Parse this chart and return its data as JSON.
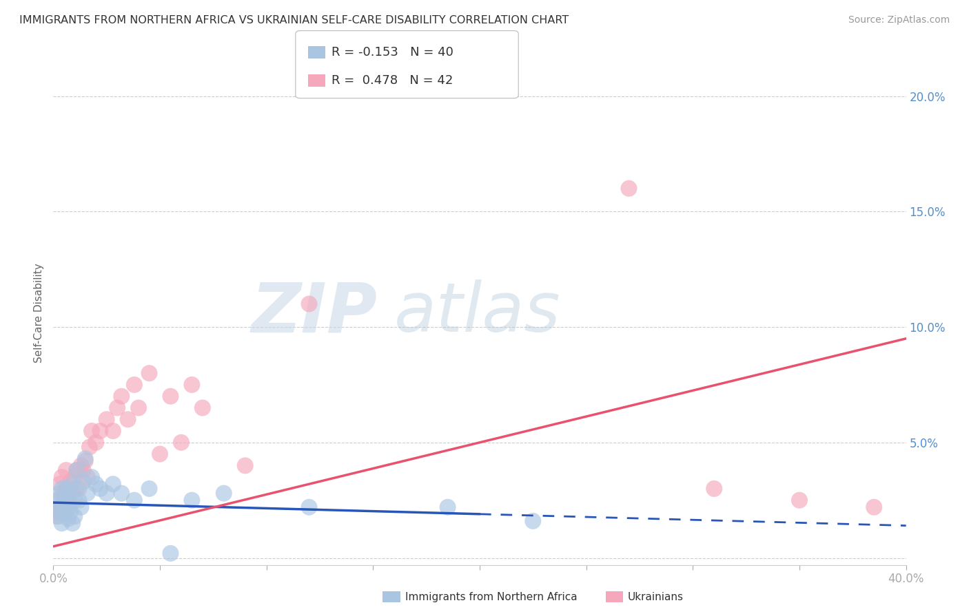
{
  "title": "IMMIGRANTS FROM NORTHERN AFRICA VS UKRAINIAN SELF-CARE DISABILITY CORRELATION CHART",
  "source": "Source: ZipAtlas.com",
  "ylabel": "Self-Care Disability",
  "xlim": [
    0.0,
    0.4
  ],
  "ylim": [
    -0.003,
    0.215
  ],
  "xticks": [
    0.0,
    0.05,
    0.1,
    0.15,
    0.2,
    0.25,
    0.3,
    0.35,
    0.4
  ],
  "xticklabels": [
    "0.0%",
    "",
    "",
    "",
    "",
    "",
    "",
    "",
    "40.0%"
  ],
  "yticks": [
    0.0,
    0.05,
    0.1,
    0.15,
    0.2
  ],
  "yticklabels": [
    "",
    "5.0%",
    "10.0%",
    "15.0%",
    "20.0%"
  ],
  "blue_R": -0.153,
  "blue_N": 40,
  "pink_R": 0.478,
  "pink_N": 42,
  "blue_color": "#aac5e2",
  "pink_color": "#f5a8bc",
  "blue_line_color": "#2855b8",
  "pink_line_color": "#e8526e",
  "watermark_zip": "ZIP",
  "watermark_atlas": "atlas",
  "legend_label_blue": "Immigrants from Northern Africa",
  "legend_label_pink": "Ukrainians",
  "blue_scatter_x": [
    0.001,
    0.002,
    0.002,
    0.003,
    0.003,
    0.004,
    0.004,
    0.005,
    0.005,
    0.006,
    0.006,
    0.007,
    0.007,
    0.008,
    0.008,
    0.009,
    0.009,
    0.01,
    0.01,
    0.011,
    0.011,
    0.012,
    0.013,
    0.014,
    0.015,
    0.016,
    0.018,
    0.02,
    0.022,
    0.025,
    0.028,
    0.032,
    0.038,
    0.045,
    0.055,
    0.065,
    0.08,
    0.12,
    0.185,
    0.225
  ],
  "blue_scatter_y": [
    0.02,
    0.025,
    0.018,
    0.022,
    0.028,
    0.015,
    0.03,
    0.025,
    0.019,
    0.023,
    0.03,
    0.022,
    0.017,
    0.028,
    0.02,
    0.032,
    0.015,
    0.025,
    0.018,
    0.03,
    0.038,
    0.025,
    0.022,
    0.033,
    0.043,
    0.028,
    0.035,
    0.032,
    0.03,
    0.028,
    0.032,
    0.028,
    0.025,
    0.03,
    0.002,
    0.025,
    0.028,
    0.022,
    0.022,
    0.016
  ],
  "pink_scatter_x": [
    0.001,
    0.002,
    0.002,
    0.003,
    0.004,
    0.004,
    0.005,
    0.006,
    0.007,
    0.007,
    0.008,
    0.009,
    0.01,
    0.011,
    0.012,
    0.013,
    0.014,
    0.015,
    0.016,
    0.017,
    0.018,
    0.02,
    0.022,
    0.025,
    0.028,
    0.03,
    0.032,
    0.035,
    0.038,
    0.04,
    0.045,
    0.05,
    0.055,
    0.06,
    0.065,
    0.07,
    0.09,
    0.12,
    0.27,
    0.31,
    0.35,
    0.385
  ],
  "pink_scatter_y": [
    0.02,
    0.025,
    0.018,
    0.032,
    0.022,
    0.035,
    0.028,
    0.038,
    0.03,
    0.025,
    0.033,
    0.028,
    0.035,
    0.038,
    0.03,
    0.04,
    0.038,
    0.042,
    0.035,
    0.048,
    0.055,
    0.05,
    0.055,
    0.06,
    0.055,
    0.065,
    0.07,
    0.06,
    0.075,
    0.065,
    0.08,
    0.045,
    0.07,
    0.05,
    0.075,
    0.065,
    0.04,
    0.11,
    0.16,
    0.03,
    0.025,
    0.022
  ],
  "blue_line_x0": 0.0,
  "blue_line_x_solid_end": 0.2,
  "blue_line_x_dashed_end": 0.4,
  "blue_line_y0": 0.024,
  "blue_line_y_solid_end": 0.019,
  "blue_line_y_dashed_end": 0.014,
  "pink_line_x0": 0.0,
  "pink_line_x_end": 0.4,
  "pink_line_y0": 0.005,
  "pink_line_y_end": 0.095
}
